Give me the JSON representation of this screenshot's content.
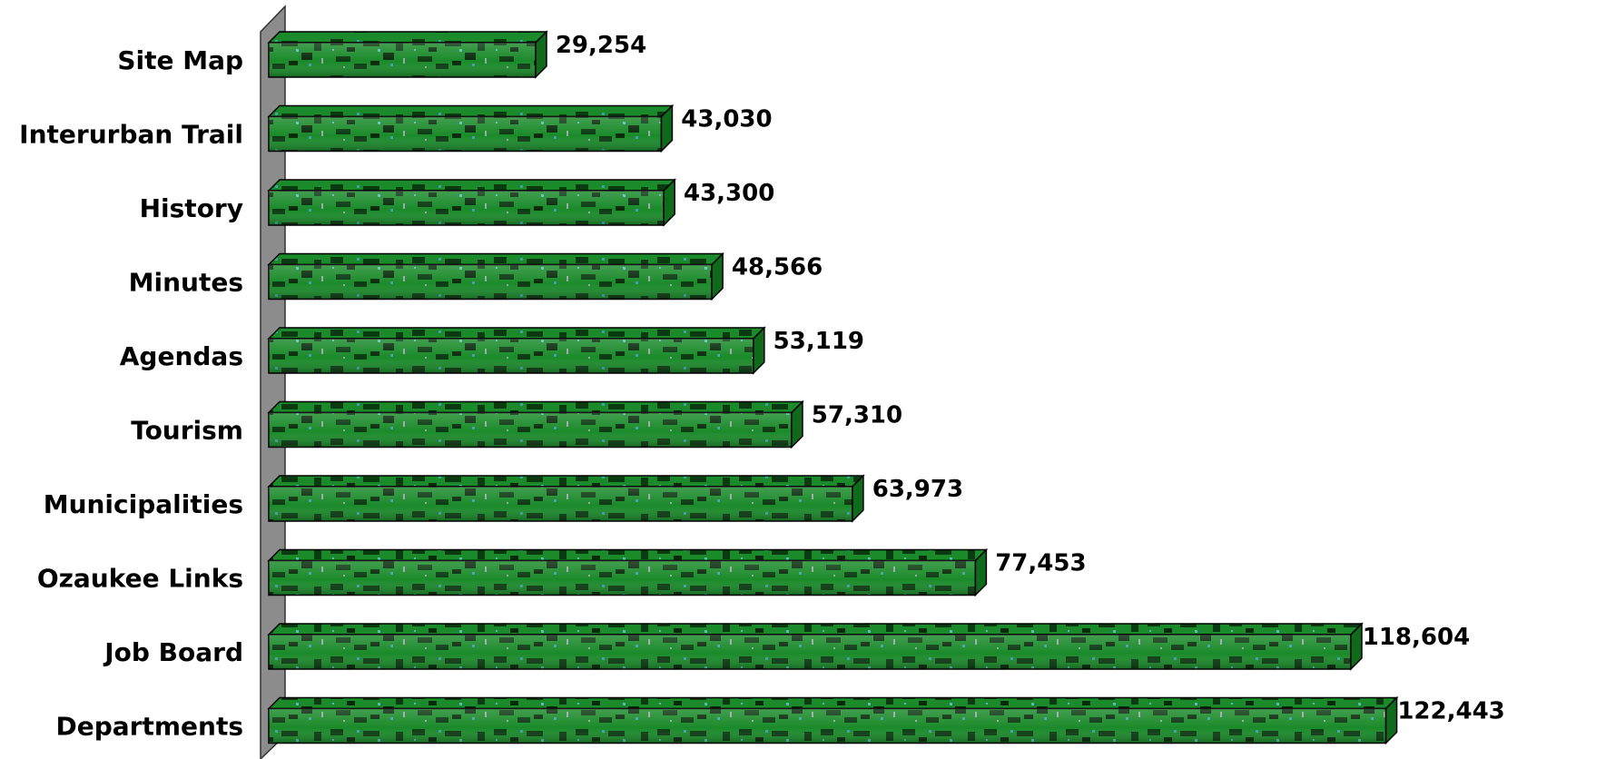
{
  "chart_data": {
    "type": "bar",
    "orientation": "horizontal",
    "categories": [
      "Site Map",
      "Interurban Trail",
      "History",
      "Minutes",
      "Agendas",
      "Tourism",
      "Municipalities",
      "Ozaukee Links",
      "Job Board",
      "Departments"
    ],
    "values": [
      29254,
      43030,
      43300,
      48566,
      53119,
      57310,
      63973,
      77453,
      118604,
      122443
    ],
    "value_labels": [
      "29,254",
      "43,030",
      "43,300",
      "48,566",
      "53,119",
      "57,310",
      "63,973",
      "77,453",
      "118,604",
      "122,443"
    ],
    "title": "",
    "xlabel": "",
    "ylabel": "",
    "xlim": [
      0,
      122443
    ],
    "grid": false,
    "legend": "none",
    "style": "3d-bar-textured",
    "colors": {
      "bar": "#1a8a2a",
      "bar_dark": "#0a3a10",
      "bar_speckle": "#3fa0a8",
      "bar_outline": "#000000",
      "wall": "#8c8c8c",
      "text": "#000000"
    }
  }
}
